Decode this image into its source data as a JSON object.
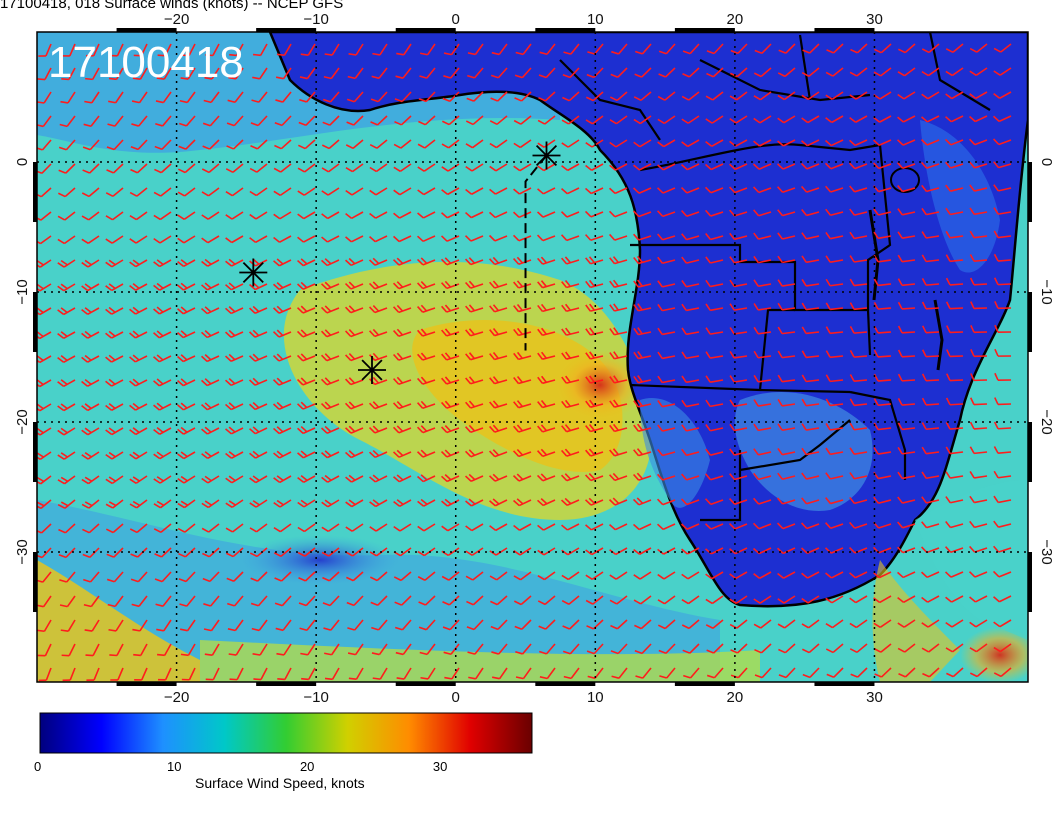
{
  "title": "17100418, 018 Surface winds (knots) -- NCEP GFS",
  "stamp": "17100418",
  "map": {
    "lon_range": [
      -30,
      41
    ],
    "lat_range": [
      -40,
      10
    ],
    "x_ticks": [
      "−20",
      "−10",
      "0",
      "10",
      "20",
      "30"
    ],
    "y_ticks": [
      "0",
      "−10",
      "−20",
      "−30"
    ],
    "colors": {
      "ocean_mid": "#49d1c9",
      "ocean_low": "#3fa0e3",
      "strong_wind": "#e5c41f",
      "land": "#1d2fd1",
      "barb": "#ff1c1c",
      "grid": "#000000"
    },
    "markers": [
      {
        "name": "storm-marker-1",
        "lon": 6.5,
        "lat": 0.5
      },
      {
        "name": "storm-marker-2",
        "lon": -14.5,
        "lat": -8.5
      },
      {
        "name": "storm-marker-3",
        "lon": -6,
        "lat": -16
      }
    ]
  },
  "colorbar": {
    "title": "Surface Wind Speed, knots",
    "ticks": [
      "0",
      "10",
      "20",
      "30"
    ],
    "range": [
      0,
      37
    ],
    "stops": [
      "#00007e",
      "#0000ff",
      "#1e90ff",
      "#00c8c8",
      "#32cd32",
      "#d0d000",
      "#ff8c00",
      "#e00000",
      "#6a0000"
    ]
  }
}
